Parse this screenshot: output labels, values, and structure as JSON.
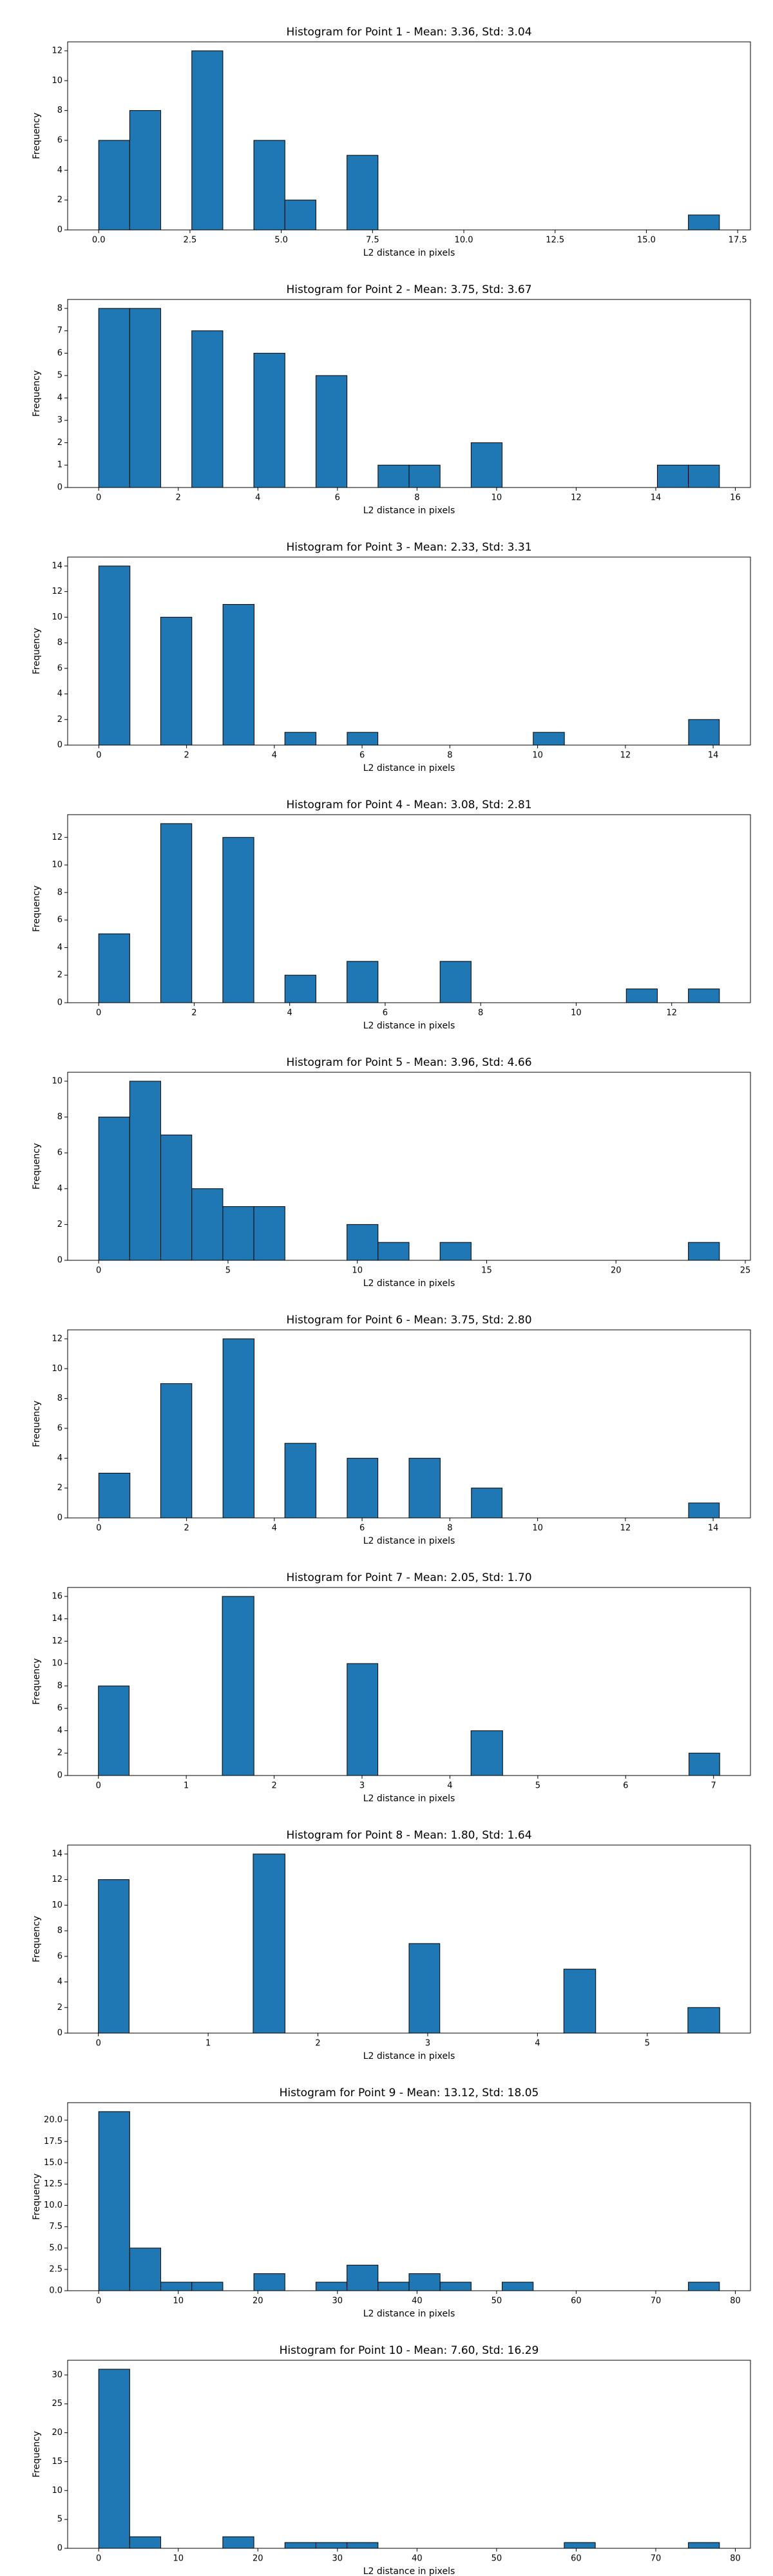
{
  "chart_data": [
    {
      "type": "histogram",
      "title": "Histogram for Point 1 - Mean: 3.36, Std: 3.04",
      "x_label": "L2 distance in pixels",
      "y_label": "Frequency",
      "color": "#1f77b4",
      "edgecolor": "#000000",
      "bins": [
        0,
        0.85,
        1.7,
        2.55,
        3.4,
        4.25,
        5.1,
        5.95,
        6.8,
        7.65,
        8.5,
        9.35,
        10.2,
        11.05,
        11.9,
        12.75,
        13.6,
        14.45,
        15.3,
        16.15,
        17
      ],
      "counts": [
        6,
        8,
        0,
        12,
        0,
        6,
        2,
        0,
        5,
        0,
        0,
        0,
        0,
        0,
        0,
        0,
        0,
        0,
        0,
        1
      ],
      "xlim": [
        -0.85,
        17.85
      ],
      "xticks": [
        {
          "value": 0,
          "label": "0.0"
        },
        {
          "value": 2.5,
          "label": "2.5"
        },
        {
          "value": 5,
          "label": "5.0"
        },
        {
          "value": 7.5,
          "label": "7.5"
        },
        {
          "value": 10,
          "label": "10.0"
        },
        {
          "value": 12.5,
          "label": "12.5"
        },
        {
          "value": 15,
          "label": "15.0"
        },
        {
          "value": 17.5,
          "label": "17.5"
        }
      ],
      "ylim": [
        0,
        12.6
      ],
      "yticks": [
        0,
        2,
        4,
        6,
        8,
        10,
        12
      ]
    },
    {
      "type": "histogram",
      "title": "Histogram for Point 2 - Mean: 3.75, Std: 3.67",
      "x_label": "L2 distance in pixels",
      "y_label": "Frequency",
      "color": "#1f77b4",
      "edgecolor": "#000000",
      "bins": [
        0,
        0.78,
        1.56,
        2.34,
        3.12,
        3.9,
        4.68,
        5.46,
        6.24,
        7.02,
        7.8,
        8.58,
        9.36,
        10.14,
        10.92,
        11.7,
        12.48,
        13.26,
        14.04,
        14.82,
        15.6
      ],
      "counts": [
        8,
        8,
        0,
        7,
        0,
        6,
        0,
        5,
        0,
        1,
        1,
        0,
        2,
        0,
        0,
        0,
        0,
        0,
        1,
        1
      ],
      "xlim": [
        -0.78,
        16.38
      ],
      "xticks": [
        0,
        2,
        4,
        6,
        8,
        10,
        12,
        14,
        16
      ],
      "ylim": [
        0,
        8.4
      ],
      "yticks": [
        0,
        1,
        2,
        3,
        4,
        5,
        6,
        7,
        8
      ]
    },
    {
      "type": "histogram",
      "title": "Histogram for Point 3 - Mean: 2.33, Std: 3.31",
      "x_label": "L2 distance in pixels",
      "y_label": "Frequency",
      "color": "#1f77b4",
      "edgecolor": "#000000",
      "bins": [
        0,
        0.71,
        1.41,
        2.12,
        2.83,
        3.54,
        4.24,
        4.95,
        5.66,
        6.36,
        7.07,
        7.78,
        8.49,
        9.19,
        9.9,
        10.61,
        11.31,
        12.02,
        12.73,
        13.44,
        14.14
      ],
      "counts": [
        14,
        0,
        10,
        0,
        11,
        0,
        1,
        0,
        1,
        0,
        0,
        0,
        0,
        0,
        1,
        0,
        0,
        0,
        0,
        2
      ],
      "xlim": [
        -0.71,
        14.85
      ],
      "xticks": [
        0,
        2,
        4,
        6,
        8,
        10,
        12,
        14
      ],
      "ylim": [
        0,
        14.7
      ],
      "yticks": [
        0,
        2,
        4,
        6,
        8,
        10,
        12,
        14
      ]
    },
    {
      "type": "histogram",
      "title": "Histogram for Point 4 - Mean: 3.08, Std: 2.81",
      "x_label": "L2 distance in pixels",
      "y_label": "Frequency",
      "color": "#1f77b4",
      "edgecolor": "#000000",
      "bins": [
        0,
        0.65,
        1.3,
        1.95,
        2.6,
        3.25,
        3.9,
        4.55,
        5.2,
        5.85,
        6.5,
        7.15,
        7.8,
        8.45,
        9.1,
        9.75,
        10.4,
        11.05,
        11.7,
        12.35,
        13
      ],
      "counts": [
        5,
        0,
        13,
        0,
        12,
        0,
        2,
        0,
        3,
        0,
        0,
        3,
        0,
        0,
        0,
        0,
        0,
        1,
        0,
        1
      ],
      "xlim": [
        -0.65,
        13.65
      ],
      "xticks": [
        0,
        2,
        4,
        6,
        8,
        10,
        12
      ],
      "ylim": [
        0,
        13.65
      ],
      "yticks": [
        0,
        2,
        4,
        6,
        8,
        10,
        12
      ]
    },
    {
      "type": "histogram",
      "title": "Histogram for Point 5 - Mean: 3.96, Std: 4.66",
      "x_label": "L2 distance in pixels",
      "y_label": "Frequency",
      "color": "#1f77b4",
      "edgecolor": "#000000",
      "bins": [
        0,
        1.2,
        2.4,
        3.6,
        4.8,
        6,
        7.2,
        8.4,
        9.6,
        10.8,
        12,
        13.2,
        14.4,
        15.6,
        16.8,
        18,
        19.2,
        20.4,
        21.6,
        22.8,
        24
      ],
      "counts": [
        8,
        10,
        7,
        4,
        3,
        3,
        0,
        0,
        2,
        1,
        0,
        1,
        0,
        0,
        0,
        0,
        0,
        0,
        0,
        1
      ],
      "xlim": [
        -1.2,
        25.2
      ],
      "xticks": [
        0,
        5,
        10,
        15,
        20,
        25
      ],
      "ylim": [
        0,
        10.5
      ],
      "yticks": [
        0,
        2,
        4,
        6,
        8,
        10
      ]
    },
    {
      "type": "histogram",
      "title": "Histogram for Point 6 - Mean: 3.75, Std: 2.80",
      "x_label": "L2 distance in pixels",
      "y_label": "Frequency",
      "color": "#1f77b4",
      "edgecolor": "#000000",
      "bins": [
        0,
        0.71,
        1.41,
        2.12,
        2.83,
        3.54,
        4.24,
        4.95,
        5.66,
        6.36,
        7.07,
        7.78,
        8.49,
        9.19,
        9.9,
        10.61,
        11.31,
        12.02,
        12.73,
        13.44,
        14.14
      ],
      "counts": [
        3,
        0,
        9,
        0,
        12,
        0,
        5,
        0,
        4,
        0,
        4,
        0,
        2,
        0,
        0,
        0,
        0,
        0,
        0,
        1
      ],
      "xlim": [
        -0.71,
        14.85
      ],
      "xticks": [
        0,
        2,
        4,
        6,
        8,
        10,
        12,
        14
      ],
      "ylim": [
        0,
        12.6
      ],
      "yticks": [
        0,
        2,
        4,
        6,
        8,
        10,
        12
      ]
    },
    {
      "type": "histogram",
      "title": "Histogram for Point 7 - Mean: 2.05, Std: 1.70",
      "x_label": "L2 distance in pixels",
      "y_label": "Frequency",
      "color": "#1f77b4",
      "edgecolor": "#000000",
      "bins": [
        0,
        0.35,
        0.71,
        1.06,
        1.41,
        1.77,
        2.12,
        2.47,
        2.83,
        3.18,
        3.54,
        3.89,
        4.24,
        4.6,
        4.95,
        5.3,
        5.66,
        6.01,
        6.36,
        6.72,
        7.07
      ],
      "counts": [
        8,
        0,
        0,
        0,
        16,
        0,
        0,
        0,
        10,
        0,
        0,
        0,
        4,
        0,
        0,
        0,
        0,
        0,
        0,
        2
      ],
      "xlim": [
        -0.35,
        7.42
      ],
      "xticks": [
        0,
        1,
        2,
        3,
        4,
        5,
        6,
        7
      ],
      "ylim": [
        0,
        16.8
      ],
      "yticks": [
        0,
        2,
        4,
        6,
        8,
        10,
        12,
        14,
        16
      ]
    },
    {
      "type": "histogram",
      "title": "Histogram for Point 8 - Mean: 1.80, Std: 1.64",
      "x_label": "L2 distance in pixels",
      "y_label": "Frequency",
      "color": "#1f77b4",
      "edgecolor": "#000000",
      "bins": [
        0,
        0.28,
        0.57,
        0.85,
        1.13,
        1.41,
        1.7,
        1.98,
        2.26,
        2.55,
        2.83,
        3.11,
        3.39,
        3.68,
        3.96,
        4.24,
        4.53,
        4.81,
        5.09,
        5.37,
        5.66
      ],
      "counts": [
        12,
        0,
        0,
        0,
        0,
        14,
        0,
        0,
        0,
        0,
        7,
        0,
        0,
        0,
        0,
        5,
        0,
        0,
        0,
        2
      ],
      "xlim": [
        -0.28,
        5.94
      ],
      "xticks": [
        0,
        1,
        2,
        3,
        4,
        5
      ],
      "ylim": [
        0,
        14.7
      ],
      "yticks": [
        0,
        2,
        4,
        6,
        8,
        10,
        12,
        14
      ]
    },
    {
      "type": "histogram",
      "title": "Histogram for Point 9 - Mean: 13.12, Std: 18.05",
      "x_label": "L2 distance in pixels",
      "y_label": "Frequency",
      "color": "#1f77b4",
      "edgecolor": "#000000",
      "bins": [
        0,
        3.9,
        7.8,
        11.7,
        15.6,
        19.5,
        23.4,
        27.3,
        31.2,
        35.1,
        39,
        42.9,
        46.8,
        50.7,
        54.6,
        58.5,
        62.4,
        66.3,
        70.2,
        74.1,
        78
      ],
      "counts": [
        21,
        5,
        1,
        1,
        0,
        2,
        0,
        1,
        3,
        1,
        2,
        1,
        0,
        1,
        0,
        0,
        0,
        0,
        0,
        1
      ],
      "xlim": [
        -3.9,
        81.9
      ],
      "xticks": [
        0,
        10,
        20,
        30,
        40,
        50,
        60,
        70,
        80
      ],
      "ylim": [
        0,
        22.05
      ],
      "yticks": [
        {
          "value": 0,
          "label": "0.0"
        },
        {
          "value": 2.5,
          "label": "2.5"
        },
        {
          "value": 5,
          "label": "5.0"
        },
        {
          "value": 7.5,
          "label": "7.5"
        },
        {
          "value": 10,
          "label": "10.0"
        },
        {
          "value": 12.5,
          "label": "12.5"
        },
        {
          "value": 15,
          "label": "15.0"
        },
        {
          "value": 17.5,
          "label": "17.5"
        },
        {
          "value": 20,
          "label": "20.0"
        }
      ]
    },
    {
      "type": "histogram",
      "title": "Histogram for Point 10 - Mean: 7.60, Std: 16.29",
      "x_label": "L2 distance in pixels",
      "y_label": "Frequency",
      "color": "#1f77b4",
      "edgecolor": "#000000",
      "bins": [
        0,
        3.9,
        7.8,
        11.7,
        15.6,
        19.5,
        23.4,
        27.3,
        31.2,
        35.1,
        39,
        42.9,
        46.8,
        50.7,
        54.6,
        58.5,
        62.4,
        66.3,
        70.2,
        74.1,
        78
      ],
      "counts": [
        31,
        2,
        0,
        0,
        2,
        0,
        1,
        1,
        1,
        0,
        0,
        0,
        0,
        0,
        0,
        1,
        0,
        0,
        0,
        1
      ],
      "xlim": [
        -3.9,
        81.9
      ],
      "xticks": [
        0,
        10,
        20,
        30,
        40,
        50,
        60,
        70,
        80
      ],
      "ylim": [
        0,
        32.55
      ],
      "yticks": [
        0,
        5,
        10,
        15,
        20,
        25,
        30
      ]
    }
  ]
}
